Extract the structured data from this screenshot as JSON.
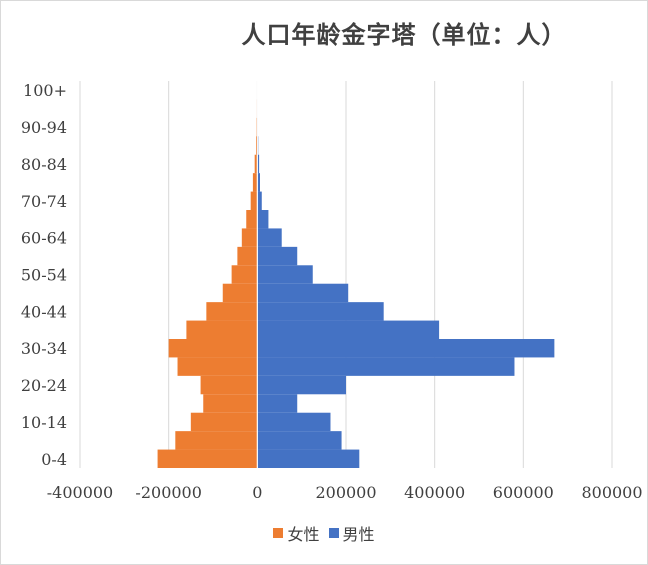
{
  "chart_data": {
    "type": "bar",
    "orientation": "horizontal",
    "subtype": "population-pyramid",
    "title": "人口年龄金字塔（单位：人）",
    "categories": [
      "0-4",
      "5-9",
      "10-14",
      "15-19",
      "20-24",
      "25-29",
      "30-34",
      "35-39",
      "40-44",
      "45-49",
      "50-54",
      "55-59",
      "60-64",
      "65-69",
      "70-74",
      "75-79",
      "80-84",
      "85-89",
      "90-94",
      "95-99",
      "100+"
    ],
    "category_labels_shown": [
      "0-4",
      "10-14",
      "20-24",
      "30-34",
      "40-44",
      "50-54",
      "60-64",
      "70-74",
      "80-84",
      "90-94",
      "100+"
    ],
    "series": [
      {
        "name": "女性",
        "color": "#ED7D31",
        "values": [
          -225000,
          -185000,
          -150000,
          -122000,
          -128000,
          -180000,
          -200000,
          -160000,
          -115000,
          -78000,
          -58000,
          -45000,
          -35000,
          -25000,
          -15000,
          -10000,
          -6000,
          -3000,
          -2000,
          -1000,
          -500
        ]
      },
      {
        "name": "男性",
        "color": "#4472C4",
        "values": [
          230000,
          190000,
          165000,
          90000,
          200000,
          580000,
          670000,
          410000,
          285000,
          205000,
          125000,
          90000,
          55000,
          25000,
          10000,
          6000,
          4000,
          2000,
          1000,
          500,
          200
        ]
      }
    ],
    "x_ticks": [
      "-400000",
      "-200000",
      "0",
      "200000",
      "400000",
      "600000",
      "800000"
    ],
    "xlim": [
      -400000,
      800000
    ],
    "grid": "vertical",
    "legend_position": "bottom",
    "legend": [
      "女性",
      "男性"
    ]
  }
}
